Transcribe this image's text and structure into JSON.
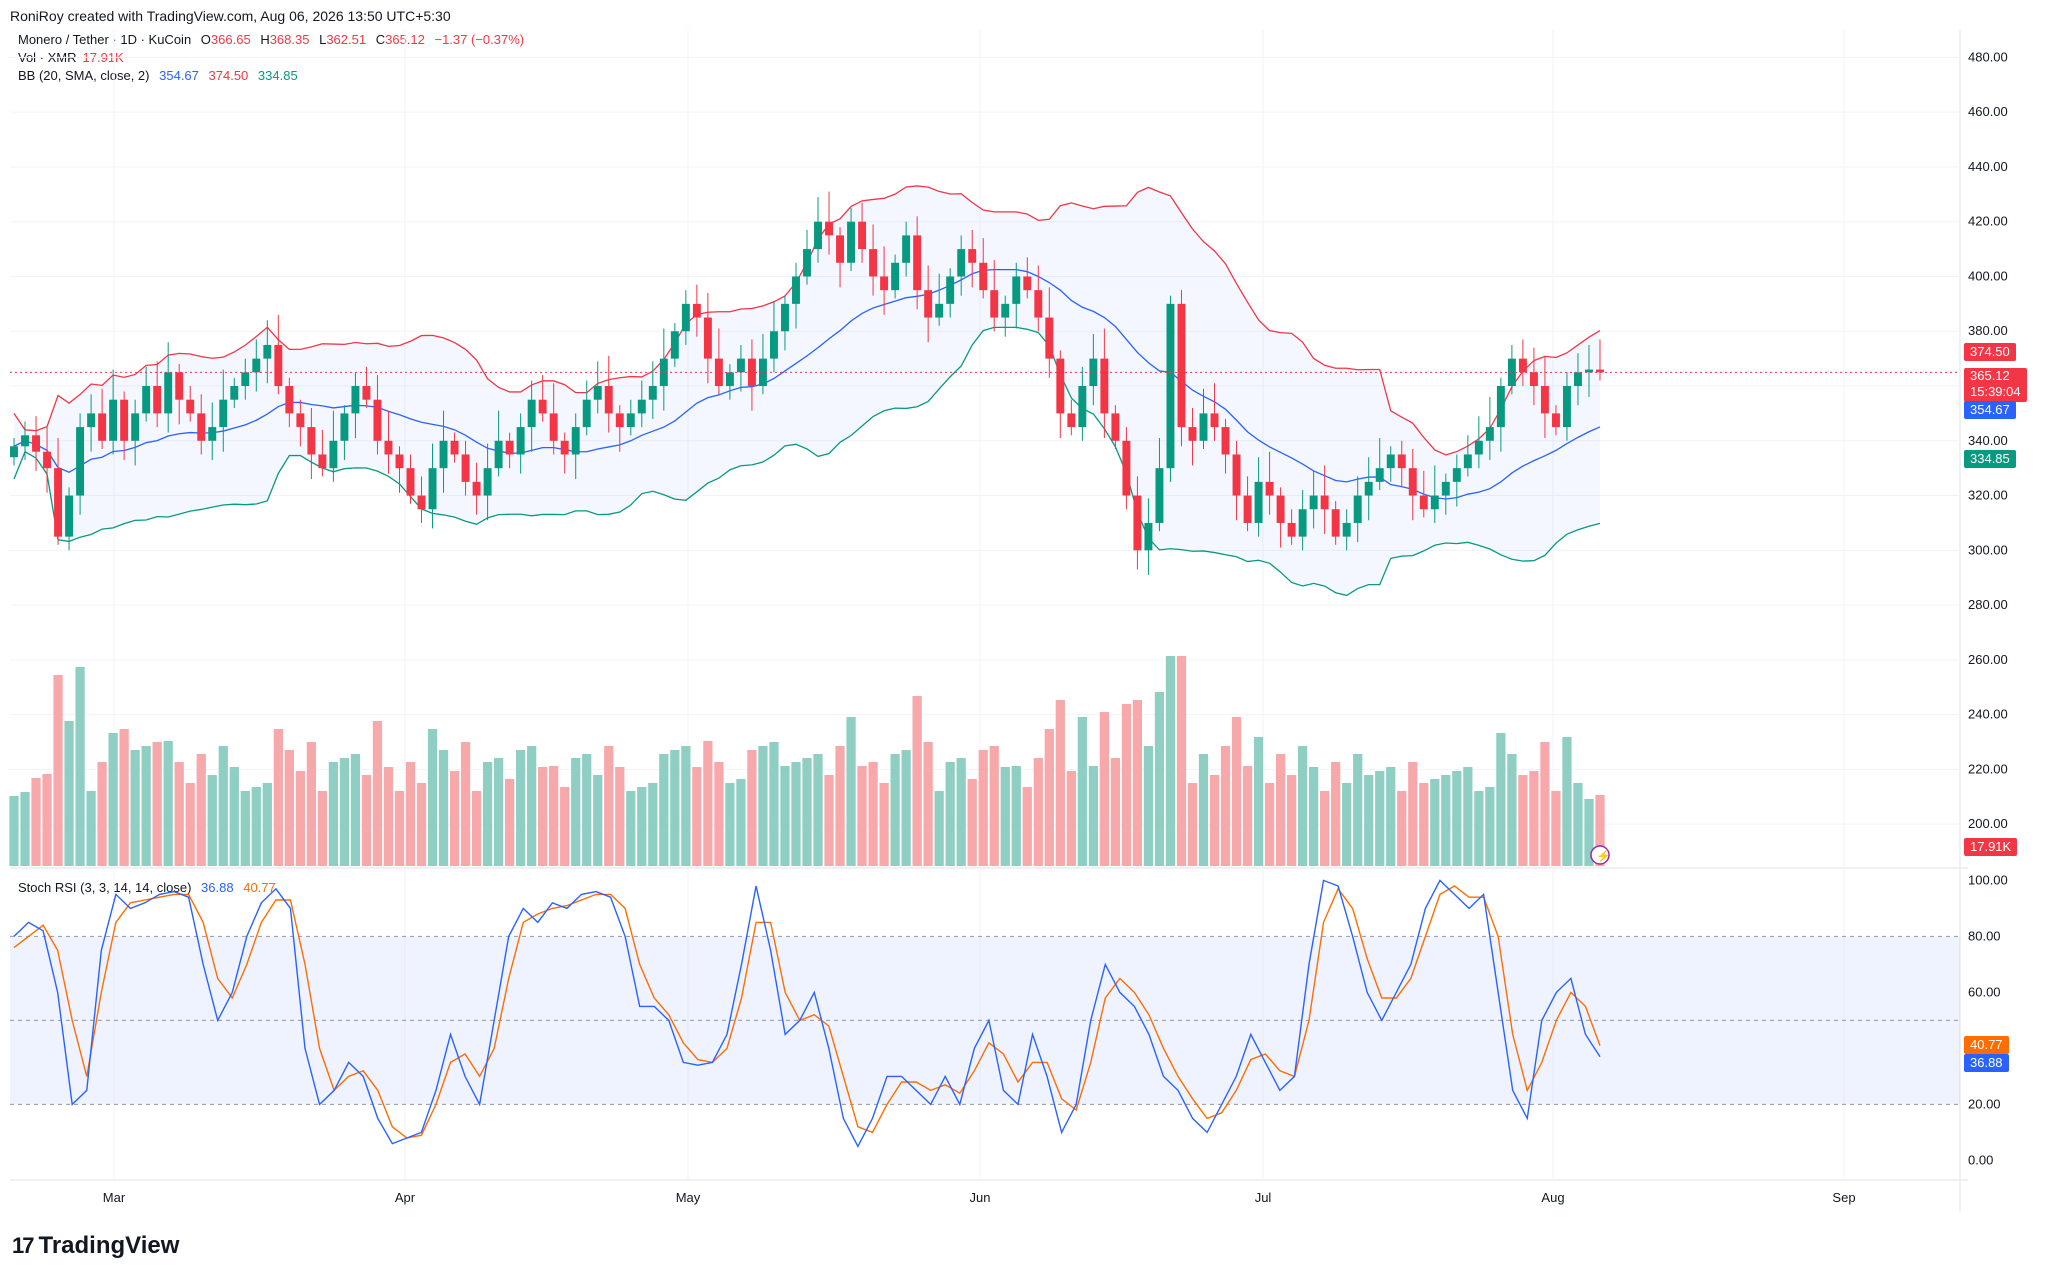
{
  "header": {
    "created": "RoniRoy created with TradingView.com, Aug 06, 2026 13:50 UTC+5:30"
  },
  "legend": {
    "symbol": "Monero / Tether · 1D · KuCoin",
    "o_label": "O",
    "o": "366.65",
    "h_label": "H",
    "h": "368.35",
    "l_label": "L",
    "l": "362.51",
    "c_label": "C",
    "c": "365.12",
    "change": "−1.37 (−0.37%)",
    "vol_label": "Vol · XMR",
    "vol": "17.91K",
    "bb_label": "BB (20, SMA, close, 2)",
    "bb_basis": "354.67",
    "bb_upper": "374.50",
    "bb_lower": "334.85",
    "stoch_label": "Stoch RSI (3, 3, 14, 14, close)",
    "stoch_k": "36.88",
    "stoch_d": "40.77"
  },
  "price_tags": {
    "upper": "374.50",
    "close": "365.12",
    "countdown": "15:39:04",
    "basis": "354.67",
    "lower": "334.85",
    "volume": "17.91K",
    "stoch_d": "40.77",
    "stoch_k": "36.88"
  },
  "x_labels": [
    "Mar",
    "Apr",
    "May",
    "Jun",
    "Jul",
    "Aug",
    "Sep"
  ],
  "branding": {
    "logo_text": "TradingView",
    "logo_mark": "17"
  },
  "colors": {
    "up": "#089981",
    "down": "#f23645",
    "up_vol": "#8fcfc3",
    "down_vol": "#f7a8ab",
    "basis": "#2962ff",
    "upper": "#f23645",
    "lower": "#089981",
    "k": "#2962ff",
    "d": "#ff6d00"
  },
  "chart_data": [
    {
      "type": "candlestick",
      "title": "Monero / Tether · 1D · KuCoin",
      "y_ticks": [
        200,
        220,
        240,
        260,
        280,
        300,
        320,
        340,
        360,
        380,
        400,
        420,
        440,
        460,
        480
      ],
      "ylim": [
        184,
        490
      ],
      "x_ticks": [
        "Mar",
        "Apr",
        "May",
        "Jun",
        "Jul",
        "Aug",
        "Sep"
      ],
      "grid": true,
      "series": [
        {
          "name": "Close",
          "values": [
            338,
            342,
            336,
            330,
            305,
            320,
            345,
            350,
            340,
            355,
            340,
            350,
            360,
            350,
            365,
            355,
            350,
            340,
            345,
            355,
            360,
            365,
            370,
            375,
            360,
            350,
            345,
            335,
            330,
            340,
            350,
            360,
            355,
            340,
            335,
            330,
            320,
            315,
            330,
            340,
            335,
            325,
            320,
            330,
            340,
            335,
            345,
            355,
            350,
            340,
            335,
            345,
            355,
            360,
            350,
            345,
            350,
            355,
            360,
            370,
            380,
            390,
            385,
            370,
            360,
            365,
            370,
            360,
            370,
            380,
            390,
            400,
            410,
            420,
            415,
            405,
            420,
            410,
            400,
            395,
            405,
            415,
            395,
            385,
            390,
            400,
            410,
            405,
            395,
            385,
            390,
            400,
            395,
            385,
            370,
            350,
            345,
            360,
            370,
            350,
            340,
            320,
            300,
            310,
            330,
            390,
            345,
            340,
            350,
            345,
            335,
            320,
            310,
            325,
            320,
            310,
            305,
            315,
            320,
            315,
            305,
            310,
            320,
            325,
            330,
            335,
            330,
            320,
            315,
            320,
            325,
            330,
            335,
            340,
            345,
            360,
            370,
            365,
            360,
            350,
            345,
            360,
            365,
            366,
            365
          ]
        },
        {
          "name": "Volume",
          "values": []
        },
        {
          "name": "BB Basis",
          "values": []
        },
        {
          "name": "BB Upper",
          "values": []
        },
        {
          "name": "BB Lower",
          "values": []
        },
        {
          "name": "Stoch RSI %K",
          "values": []
        },
        {
          "name": "Stoch RSI %D",
          "values": []
        }
      ]
    },
    {
      "type": "bar",
      "title": "Vol · XMR",
      "series": [
        {
          "name": "Vol · XMR",
          "values": []
        }
      ]
    },
    {
      "type": "line",
      "title": "Stoch RSI (3, 3, 14, 14, close)",
      "y_ticks": [
        0,
        20,
        40,
        60,
        80,
        100
      ],
      "ylim": [
        -7,
        103
      ],
      "bands": [
        20,
        50,
        80
      ],
      "series": [
        {
          "name": "%K",
          "values": [
            80,
            85,
            82,
            60,
            20,
            25,
            75,
            95,
            90,
            92,
            95,
            96,
            94,
            70,
            50,
            60,
            80,
            92,
            97,
            90,
            40,
            20,
            25,
            35,
            30,
            15,
            6,
            8,
            10,
            25,
            45,
            30,
            20,
            50,
            80,
            90,
            85,
            92,
            90,
            95,
            96,
            94,
            80,
            55,
            55,
            50,
            35,
            34,
            35,
            45,
            70,
            98,
            75,
            45,
            50,
            60,
            40,
            15,
            5,
            15,
            30,
            30,
            25,
            20,
            30,
            20,
            40,
            50,
            25,
            20,
            45,
            30,
            10,
            20,
            50,
            70,
            60,
            55,
            45,
            30,
            25,
            15,
            10,
            20,
            30,
            45,
            35,
            25,
            30,
            70,
            100,
            98,
            80,
            60,
            50,
            60,
            70,
            90,
            100,
            95,
            90,
            95,
            60,
            25,
            15,
            50,
            60,
            65,
            45,
            37
          ]
        },
        {
          "name": "%D",
          "values": [
            76,
            80,
            84,
            75,
            50,
            30,
            60,
            85,
            92,
            93,
            94,
            95,
            95,
            85,
            65,
            58,
            70,
            85,
            93,
            93,
            70,
            40,
            25,
            30,
            32,
            25,
            12,
            8,
            9,
            20,
            35,
            38,
            30,
            40,
            65,
            85,
            88,
            90,
            91,
            93,
            95,
            95,
            90,
            70,
            58,
            52,
            42,
            36,
            35,
            40,
            58,
            85,
            85,
            60,
            50,
            52,
            48,
            30,
            12,
            10,
            20,
            28,
            28,
            25,
            27,
            24,
            32,
            42,
            38,
            28,
            35,
            35,
            22,
            18,
            35,
            58,
            65,
            60,
            52,
            40,
            30,
            22,
            15,
            17,
            25,
            36,
            38,
            32,
            30,
            50,
            85,
            97,
            90,
            72,
            58,
            58,
            65,
            80,
            95,
            98,
            94,
            94,
            80,
            45,
            25,
            35,
            50,
            60,
            55,
            41
          ]
        }
      ]
    }
  ]
}
